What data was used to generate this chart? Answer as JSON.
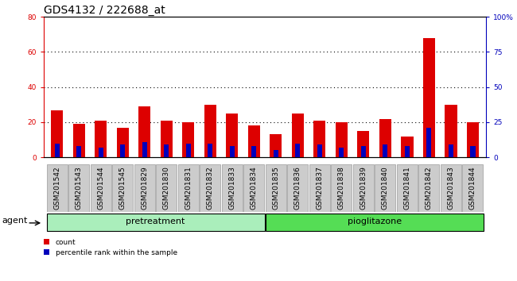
{
  "title": "GDS4132 / 222688_at",
  "categories": [
    "GSM201542",
    "GSM201543",
    "GSM201544",
    "GSM201545",
    "GSM201829",
    "GSM201830",
    "GSM201831",
    "GSM201832",
    "GSM201833",
    "GSM201834",
    "GSM201835",
    "GSM201836",
    "GSM201837",
    "GSM201838",
    "GSM201839",
    "GSM201840",
    "GSM201841",
    "GSM201842",
    "GSM201843",
    "GSM201844"
  ],
  "count_values": [
    27,
    19,
    21,
    17,
    29,
    21,
    20,
    30,
    25,
    18,
    13,
    25,
    21,
    20,
    15,
    22,
    12,
    68,
    30,
    20
  ],
  "percentile_values": [
    10,
    8,
    7,
    9,
    11,
    9,
    10,
    10,
    8,
    8,
    5,
    10,
    9,
    7,
    8,
    9,
    8,
    21,
    9,
    8
  ],
  "count_color": "#dd0000",
  "percentile_color": "#0000bb",
  "bar_width": 0.55,
  "pct_bar_width": 0.22,
  "ylim_left": [
    0,
    80
  ],
  "ylim_right": [
    0,
    100
  ],
  "yticks_left": [
    0,
    20,
    40,
    60,
    80
  ],
  "yticks_right": [
    0,
    25,
    50,
    75,
    100
  ],
  "ytick_labels_right": [
    "0",
    "25",
    "50",
    "75",
    "100%"
  ],
  "tick_bg_color": "#cccccc",
  "pretreatment_color": "#aaeebb",
  "pioglitazone_color": "#55dd55",
  "pretreatment_label": "pretreatment",
  "pioglitazone_label": "pioglitazone",
  "pretreatment_count": 10,
  "pioglitazone_count": 10,
  "agent_label": "agent",
  "legend_count_label": "count",
  "legend_pct_label": "percentile rank within the sample",
  "title_fontsize": 10,
  "tick_fontsize": 6.5,
  "label_fontsize": 8
}
